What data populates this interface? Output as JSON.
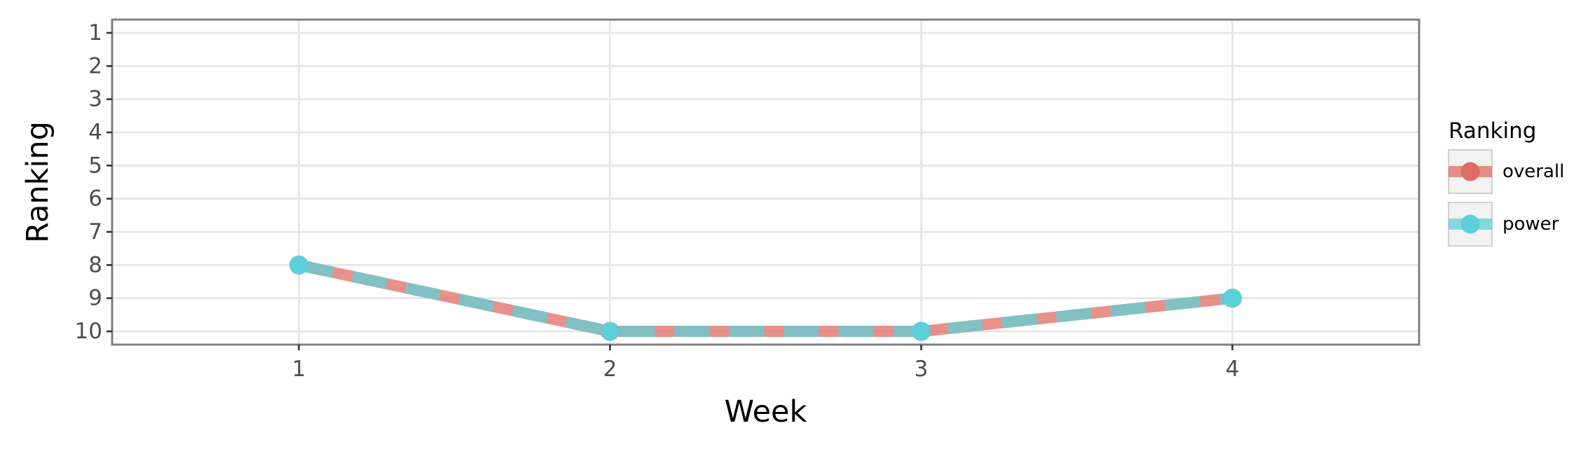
{
  "chart_data": {
    "type": "line",
    "xlabel": "Week",
    "ylabel": "Ranking",
    "x": [
      1,
      2,
      3,
      4
    ],
    "xlim": [
      0.4,
      4.6
    ],
    "ylim": [
      10.4,
      0.6
    ],
    "y_reversed": true,
    "x_ticks": [
      1,
      2,
      3,
      4
    ],
    "y_ticks": [
      1,
      2,
      3,
      4,
      5,
      6,
      7,
      8,
      9,
      10
    ],
    "grid": true,
    "legend": {
      "title": "Ranking",
      "position": "right"
    },
    "series": [
      {
        "name": "overall",
        "values": [
          8,
          10,
          10,
          9
        ],
        "color": "#e06b63",
        "line_style": "dashed"
      },
      {
        "name": "power",
        "values": [
          8,
          10,
          10,
          9
        ],
        "color": "#5dcfdb",
        "line_style": "solid"
      }
    ],
    "colors": {
      "panel_border": "#7f7f7f",
      "grid": "#e5e5e5",
      "legend_key_bg": "#f2f2f2",
      "legend_key_border": "#d0d0d0"
    }
  }
}
